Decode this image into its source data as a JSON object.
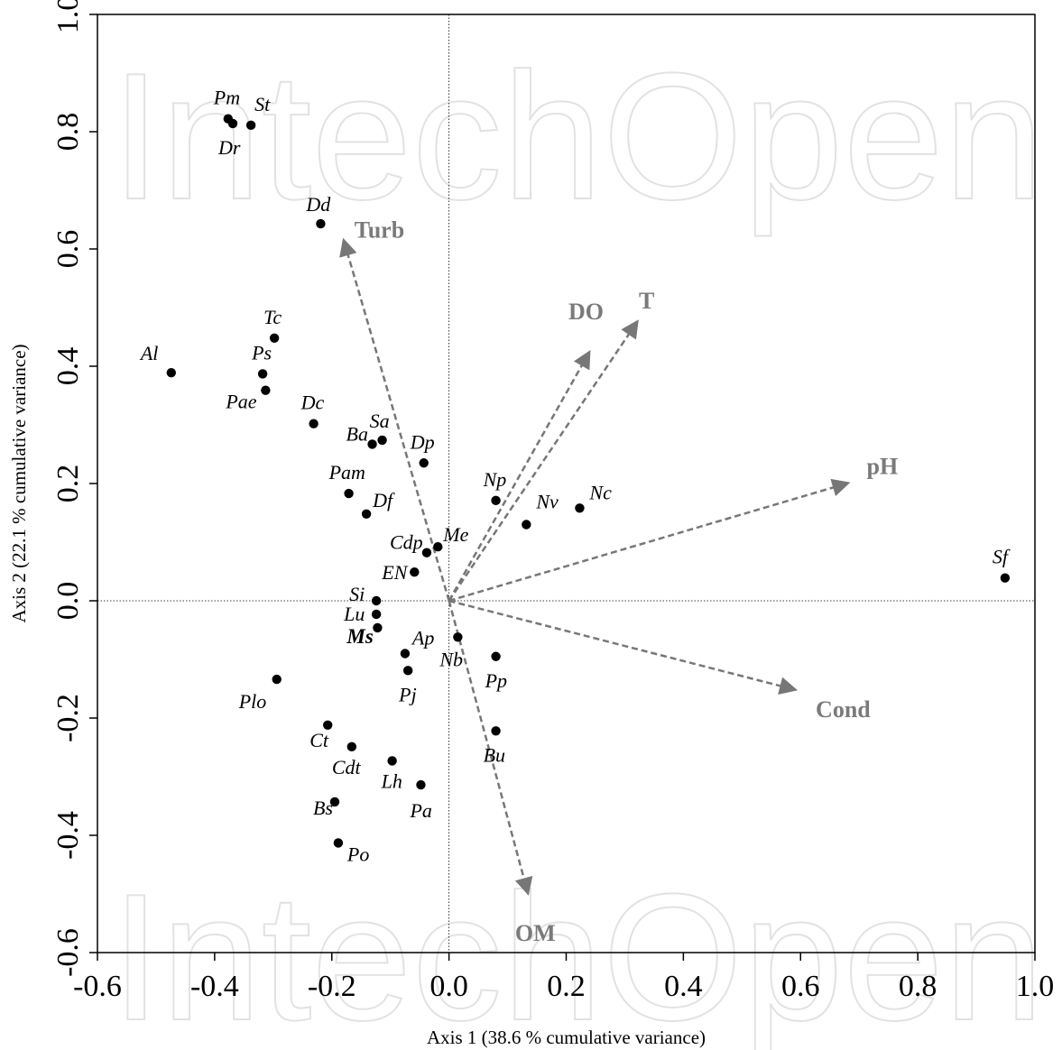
{
  "watermark": "IntechOpen",
  "chart_data": {
    "type": "scatter",
    "subtype": "ordination-biplot",
    "xlabel": "Axis 1 (38.6 % cumulative variance)",
    "ylabel": "Axis 2 (22.1 % cumulative variance)",
    "xlim": [
      -0.6,
      1.0
    ],
    "ylim": [
      -0.6,
      1.0
    ],
    "x_ticks": [
      "-0.6",
      "-0.4",
      "-0.2",
      "0.0",
      "0.2",
      "0.4",
      "0.6",
      "0.8",
      "1.0"
    ],
    "y_ticks": [
      "-0.6",
      "-0.4",
      "-0.2",
      "0.0",
      "0.2",
      "0.4",
      "0.6",
      "0.8",
      "1.0"
    ],
    "x_tick_values": [
      -0.6,
      -0.4,
      -0.2,
      0.0,
      0.2,
      0.4,
      0.6,
      0.8,
      1.0
    ],
    "y_tick_values": [
      -0.6,
      -0.4,
      -0.2,
      0.0,
      0.2,
      0.4,
      0.6,
      0.8,
      1.0
    ],
    "grid": false,
    "zero_lines": true,
    "point_color": "#000000",
    "vector_color": "#777777",
    "points": [
      {
        "label": "Pm",
        "x": -0.377,
        "y": 0.822
      },
      {
        "label": "St",
        "x": -0.338,
        "y": 0.811
      },
      {
        "label": "Dr",
        "x": -0.369,
        "y": 0.814
      },
      {
        "label": "Dd",
        "x": -0.219,
        "y": 0.643
      },
      {
        "label": "Tc",
        "x": -0.298,
        "y": 0.448
      },
      {
        "label": "Al",
        "x": -0.474,
        "y": 0.389
      },
      {
        "label": "Ps",
        "x": -0.318,
        "y": 0.387
      },
      {
        "label": "Pae",
        "x": -0.313,
        "y": 0.359
      },
      {
        "label": "Dc",
        "x": -0.231,
        "y": 0.302
      },
      {
        "label": "Sa",
        "x": -0.114,
        "y": 0.274
      },
      {
        "label": "Ba",
        "x": -0.131,
        "y": 0.267
      },
      {
        "label": "Dp",
        "x": -0.043,
        "y": 0.235
      },
      {
        "label": "Pam",
        "x": -0.171,
        "y": 0.183
      },
      {
        "label": "Df",
        "x": -0.141,
        "y": 0.148
      },
      {
        "label": "Np",
        "x": 0.08,
        "y": 0.171
      },
      {
        "label": "Nv",
        "x": 0.132,
        "y": 0.13
      },
      {
        "label": "Nc",
        "x": 0.223,
        "y": 0.158
      },
      {
        "label": "Me",
        "x": -0.019,
        "y": 0.092
      },
      {
        "label": "Cdp",
        "x": -0.038,
        "y": 0.082
      },
      {
        "label": "EN",
        "x": -0.059,
        "y": 0.049
      },
      {
        "label": "Sf",
        "x": 0.949,
        "y": 0.039
      },
      {
        "label": "Si",
        "x": -0.124,
        "y": 0.0
      },
      {
        "label": "Lu",
        "x": -0.124,
        "y": -0.023
      },
      {
        "label": "Ms",
        "x": -0.122,
        "y": -0.046,
        "bold": true
      },
      {
        "label": "Nb",
        "x": 0.015,
        "y": -0.062
      },
      {
        "label": "Ap",
        "x": -0.075,
        "y": -0.09
      },
      {
        "label": "Pp",
        "x": 0.08,
        "y": -0.095
      },
      {
        "label": "Pj",
        "x": -0.07,
        "y": -0.119
      },
      {
        "label": "Plo",
        "x": -0.294,
        "y": -0.134
      },
      {
        "label": "Ct",
        "x": -0.207,
        "y": -0.212
      },
      {
        "label": "Bu",
        "x": 0.08,
        "y": -0.222
      },
      {
        "label": "Cdt",
        "x": -0.166,
        "y": -0.249
      },
      {
        "label": "Lh",
        "x": -0.097,
        "y": -0.273
      },
      {
        "label": "Pa",
        "x": -0.048,
        "y": -0.314
      },
      {
        "label": "Bs",
        "x": -0.195,
        "y": -0.343
      },
      {
        "label": "Po",
        "x": -0.189,
        "y": -0.413
      }
    ],
    "vectors": [
      {
        "label": "Turb",
        "x": -0.18,
        "y": 0.616
      },
      {
        "label": "T",
        "x": 0.322,
        "y": 0.477
      },
      {
        "label": "DO",
        "x": 0.24,
        "y": 0.425
      },
      {
        "label": "pH",
        "x": 0.682,
        "y": 0.201
      },
      {
        "label": "Cond",
        "x": 0.592,
        "y": -0.152
      },
      {
        "label": "OM",
        "x": 0.135,
        "y": -0.5
      }
    ]
  }
}
